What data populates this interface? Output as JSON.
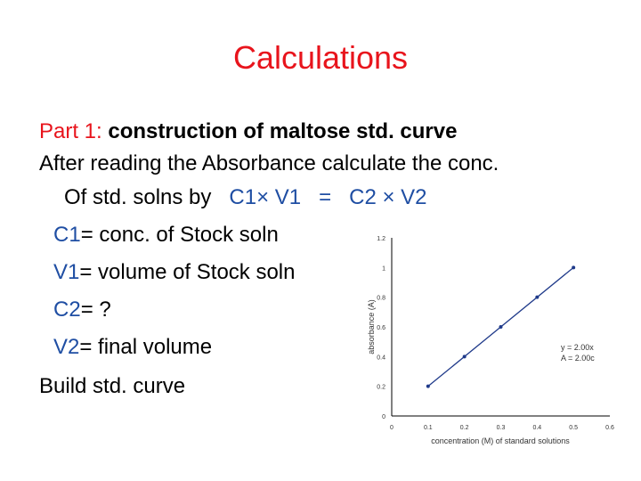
{
  "slide": {
    "title": "Calculations",
    "part_label": "Part 1:",
    "part_text": "construction of maltose std. curve",
    "line2": "After reading the Absorbance calculate the conc.",
    "line3_prefix": "Of std. solns by",
    "c1v1": "C1× V1",
    "equals": "=",
    "c2v2": "C2 × V2",
    "defs": [
      {
        "var": "C1",
        "text": "= conc. of Stock soln"
      },
      {
        "var": "V1",
        "text": "= volume of Stock soln"
      },
      {
        "var": "C2",
        "text": "= ?"
      },
      {
        "var": "V2",
        "text": "= final volume"
      }
    ],
    "last_line": "Build std. curve"
  },
  "colors": {
    "title": "#e8141c",
    "variable": "#1f4ea3",
    "chart_line": "#1f3a8a"
  },
  "chart_data": {
    "type": "line",
    "x": [
      0.1,
      0.2,
      0.3,
      0.4,
      0.5
    ],
    "y": [
      0.2,
      0.4,
      0.6,
      0.8,
      1.0
    ],
    "xlabel": "concentration (M) of standard solutions",
    "ylabel": "absorbance (A)",
    "xlim": [
      0,
      0.6
    ],
    "ylim": [
      0,
      1.2
    ],
    "xticks": [
      "0",
      "0.1",
      "0.2",
      "0.3",
      "0.4",
      "0.5",
      "0.6"
    ],
    "yticks": [
      "0",
      "0.2",
      "0.4",
      "0.6",
      "0.8",
      "1",
      "1.2"
    ],
    "annotation_lines": [
      "y = 2.00x",
      "A = 2.00c"
    ],
    "grid": false
  }
}
